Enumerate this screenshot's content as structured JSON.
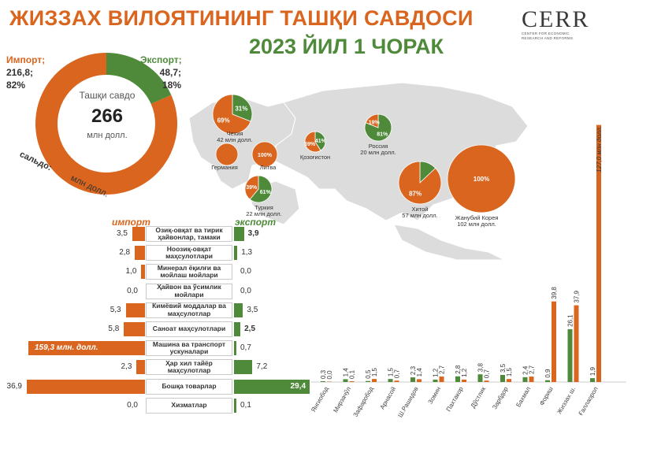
{
  "header": {
    "title_line1": "ЖИЗЗАХ ВИЛОЯТИНИНГ ТАШҚИ САВДОСИ",
    "title_line2": "2023 ЙИЛ 1 ЧОРАК",
    "logo_text": "CERR",
    "logo_sub1": "CENTER FOR ECONOMIC",
    "logo_sub2": "RESEARCH AND REFORMS"
  },
  "colors": {
    "import": "#d9651e",
    "export": "#4e8a3a",
    "map": "#dcdcdc"
  },
  "summary": {
    "import_label": "Импорт;",
    "import_value": "216,8;",
    "import_share": "82%",
    "export_label": "Экспорт;",
    "export_value": "48,7;",
    "export_share": "18%",
    "center_title": "Ташқи савдо",
    "center_value": "266",
    "center_unit": "млн долл.",
    "saldo_label": "сальдо:",
    "saldo_value": " -168",
    "saldo_unit": " млн долл."
  },
  "chart_data": [
    {
      "type": "pie",
      "name": "",
      "slices": [
        {
          "label": "Импорт",
          "value": 216.8,
          "share": 82
        },
        {
          "label": "Экспорт",
          "value": 48.7,
          "share": 18
        }
      ]
    },
    {
      "type": "pie",
      "name": "countries",
      "countries": [
        {
          "label": "Чехия",
          "amount": "42 млн долл.",
          "import_share": 69,
          "export_share": 31,
          "import_text": "69%",
          "export_text": "31%"
        },
        {
          "label": "Германия",
          "amount": "",
          "import_share": 100,
          "export_share": 0,
          "import_text": "",
          "export_text": ""
        },
        {
          "label": "Литва",
          "amount": "",
          "import_share": 100,
          "export_share": 0,
          "import_text": "100%",
          "export_text": ""
        },
        {
          "label": "Туркия",
          "amount": "22 млн долл.",
          "import_share": 39,
          "export_share": 61,
          "import_text": "39%",
          "export_text": "61%"
        },
        {
          "label": "Қозоғистон",
          "amount": "",
          "import_share": 59,
          "export_share": 41,
          "import_text": "59%",
          "export_text": "41%"
        },
        {
          "label": "Россия",
          "amount": "20 млн долл.",
          "import_share": 19,
          "export_share": 81,
          "import_text": "19%",
          "export_text": "81%"
        },
        {
          "label": "Хитой",
          "amount": "57 млн долл.",
          "import_share": 87,
          "export_share": 13,
          "import_text": "87%",
          "export_text": ""
        },
        {
          "label": "Жанубий Корея",
          "amount": "102 млн долл.",
          "import_share": 100,
          "export_share": 0,
          "import_text": "100%",
          "export_text": ""
        }
      ]
    },
    {
      "type": "bar",
      "name": "commodities",
      "import_header": "импорт",
      "export_header": "экспорт",
      "big_import_label": "159,3 млн. долл.",
      "categories": [
        "Озиқ-овқат ва тирик ҳайвонлар, тамаки",
        "Ноозиқ-овқат маҳсулотлари",
        "Минерал ёқилғи ва мойлаш мойлари",
        "Ҳайвон ва ўсимлик мойлари",
        "Кимёвий моддалар ва маҳсулотлар",
        "Саноат маҳсулотлари",
        "Машина ва транспорт ускуналари",
        "Ҳар хил тайёр маҳсулотлар",
        "Бошқа товарлар",
        "Хизматлар"
      ],
      "import_values": [
        3.5,
        2.8,
        1.0,
        0.0,
        5.3,
        5.8,
        159.3,
        2.3,
        36.9,
        0.0
      ],
      "export_values": [
        3.9,
        1.3,
        0.0,
        0.0,
        3.5,
        2.5,
        0.7,
        7.2,
        29.4,
        0.1
      ],
      "import_labels": [
        "3,5",
        "2,8",
        "1,0",
        "0,0",
        "5,3",
        "5,8",
        "",
        "2,3",
        "36,9",
        "0,0"
      ],
      "export_labels": [
        "3,9",
        "1,3",
        "0,0",
        "0,0",
        "3,5",
        "2,5",
        "0,7",
        "7,2",
        "29,4",
        "0,1"
      ]
    },
    {
      "type": "bar",
      "name": "districts",
      "unit_label": "127,0 млн долл.",
      "categories": [
        "Янгиобод",
        "Мирзачўл",
        "Зафаробод",
        "Арнасой",
        "Ш.Рашидов",
        "Зомин",
        "Пахтакор",
        "Дўстлик",
        "Зарбдор",
        "Бахмал",
        "Фориш",
        "Жиззах ш.",
        "Ғаллаорол"
      ],
      "export_values": [
        0.3,
        1.4,
        0.5,
        1.5,
        2.3,
        1.2,
        2.8,
        3.8,
        3.5,
        2.4,
        0.9,
        26.1,
        1.9
      ],
      "import_values": [
        0.0,
        0.1,
        1.5,
        0.7,
        1.4,
        2.7,
        1.2,
        0.7,
        1.5,
        2.7,
        39.8,
        37.9,
        127.0
      ],
      "export_labels": [
        "0,3",
        "1,4",
        "0,5",
        "1,5",
        "2,3",
        "1,2",
        "2,8",
        "3,8",
        "3,5",
        "2,4",
        "0,9",
        "26,1",
        "1,9"
      ],
      "import_labels": [
        "0,0",
        "0,1",
        "1,5",
        "0,7",
        "1,4",
        "2,7",
        "1,2",
        "0,7",
        "1,5",
        "2,7",
        "39,8",
        "37,9",
        ""
      ]
    }
  ]
}
